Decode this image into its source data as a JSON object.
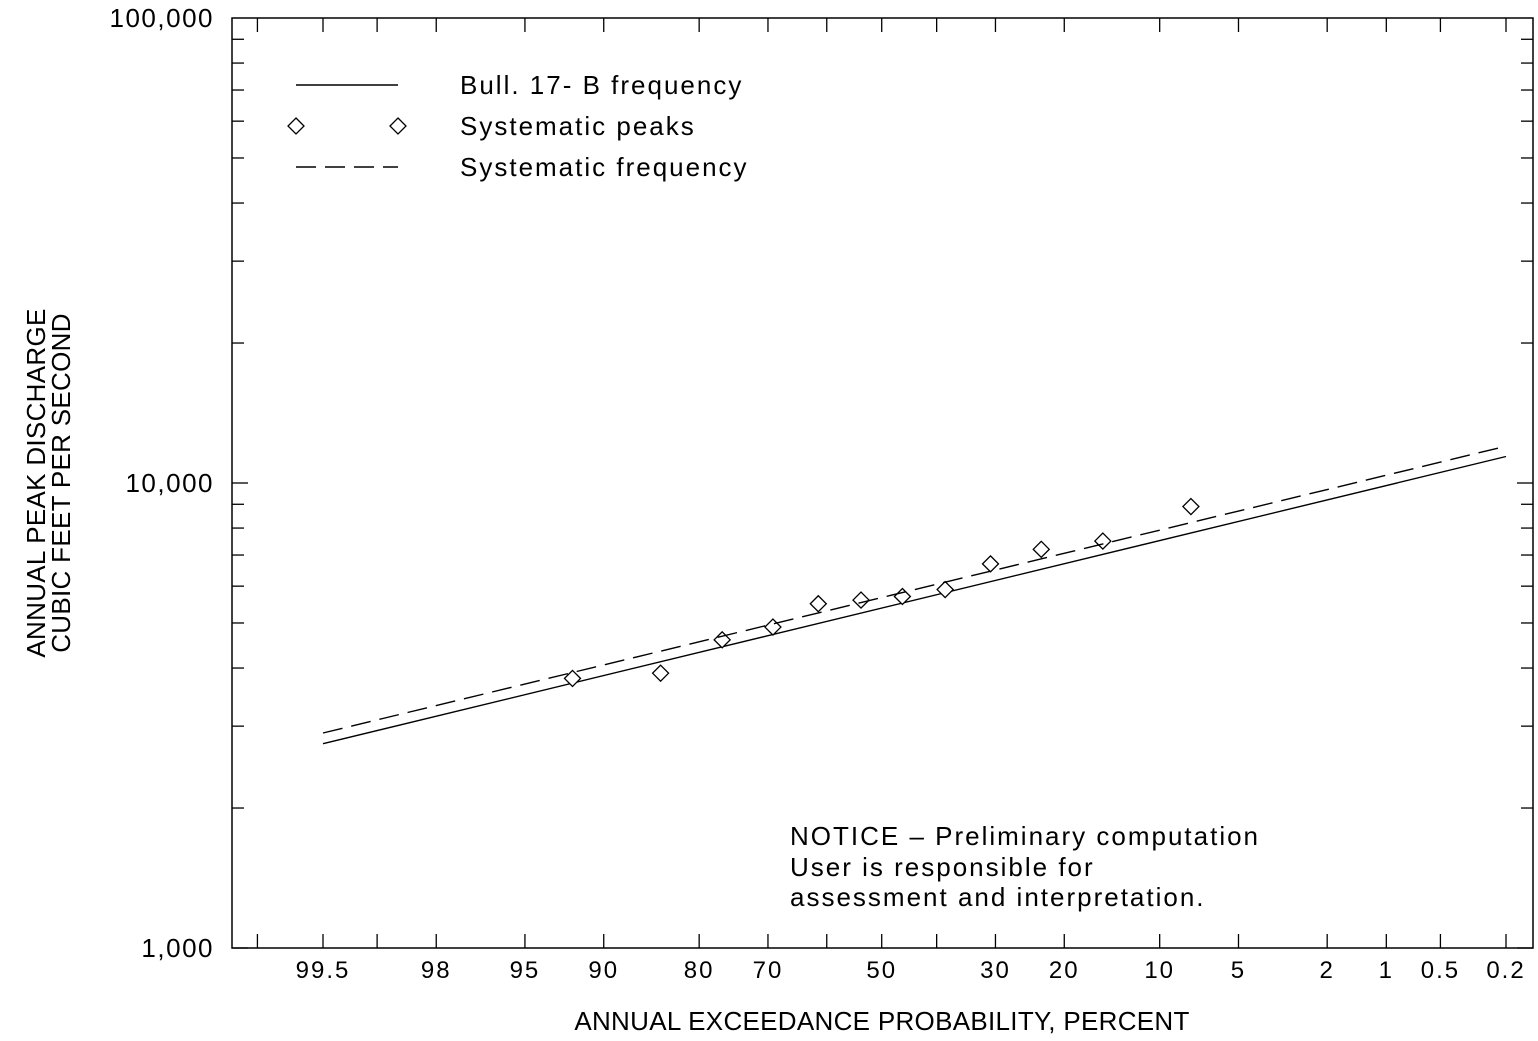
{
  "chart_data": {
    "type": "line",
    "title": "",
    "xlabel": "ANNUAL EXCEEDANCE PROBABILITY, PERCENT",
    "ylabel": [
      "ANNUAL PEAK DISCHARGE",
      "CUBIC FEET PER SECOND"
    ],
    "y_scale": "log",
    "ylim": [
      1000,
      100000
    ],
    "y_ticks": [
      {
        "value": 1000,
        "label": "1,000"
      },
      {
        "value": 10000,
        "label": "10,000"
      },
      {
        "value": 100000,
        "label": "100,000"
      }
    ],
    "x_scale": "normal-probability",
    "xlim": [
      99.8,
      0.2
    ],
    "x_ticks": [
      {
        "value": 99.5,
        "label": "99.5"
      },
      {
        "value": 98,
        "label": "98"
      },
      {
        "value": 95,
        "label": "95"
      },
      {
        "value": 90,
        "label": "90"
      },
      {
        "value": 80,
        "label": "80"
      },
      {
        "value": 70,
        "label": "70"
      },
      {
        "value": 50,
        "label": "50"
      },
      {
        "value": 30,
        "label": "30"
      },
      {
        "value": 20,
        "label": "20"
      },
      {
        "value": 10,
        "label": "10"
      },
      {
        "value": 5,
        "label": "5"
      },
      {
        "value": 2,
        "label": "2"
      },
      {
        "value": 1,
        "label": "1"
      },
      {
        "value": 0.5,
        "label": "0.5"
      },
      {
        "value": 0.2,
        "label": "0.2"
      }
    ],
    "grid": false,
    "legend_position": "top-left",
    "series": [
      {
        "name": "Bull. 17- B frequency",
        "style": "solid",
        "x": [
          99.5,
          0.2
        ],
        "y": [
          2750,
          11400
        ]
      },
      {
        "name": "Systematic peaks",
        "style": "diamond-markers",
        "x": [
          92.3,
          84.6,
          76.9,
          69.2,
          61.5,
          53.8,
          46.2,
          38.5,
          30.8,
          23.1,
          15.4,
          7.7
        ],
        "y": [
          3800,
          3900,
          4600,
          4900,
          5500,
          5600,
          5700,
          5900,
          6700,
          7200,
          7500,
          8900
        ]
      },
      {
        "name": "Systematic frequency",
        "style": "dashed",
        "x": [
          99.5,
          0.2
        ],
        "y": [
          2900,
          12000
        ]
      }
    ],
    "annotation": [
      "NOTICE –  Preliminary computation",
      "User is responsible for",
      "assessment and interpretation."
    ]
  }
}
